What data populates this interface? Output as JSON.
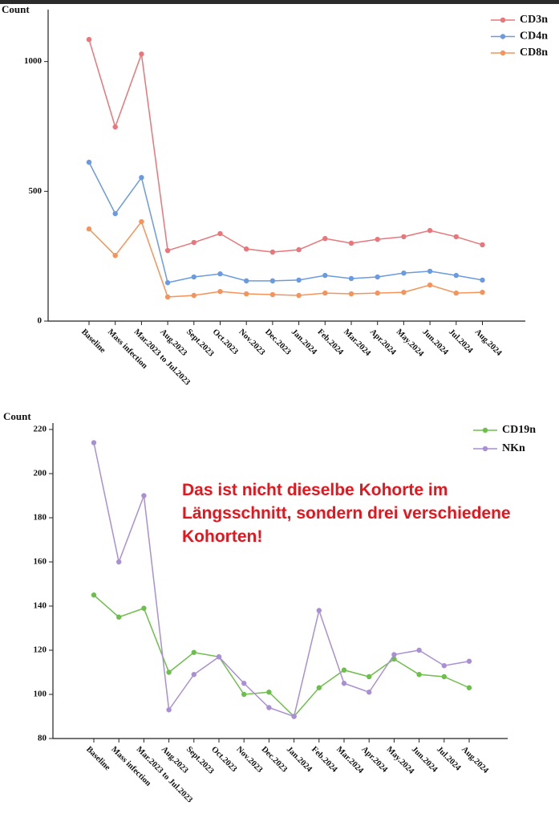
{
  "chart_data": [
    {
      "type": "line",
      "y_label": "Count",
      "categories": [
        "Baseline",
        "Mass infection",
        "Mar.2023 to Jul.2023",
        "Aug.2023",
        "Sept.2023",
        "Oct.2023",
        "Nov.2023",
        "Dec.2023",
        "Jan.2024",
        "Feb.2024",
        "Mar.2024",
        "Apr.2024",
        "May.2024",
        "Jun.2024",
        "Jul.2024",
        "Aug.2024"
      ],
      "series": [
        {
          "name": "CD3n",
          "color": "#e8767a",
          "values": [
            1085,
            748,
            1029,
            272,
            303,
            337,
            278,
            266,
            275,
            318,
            300,
            315,
            325,
            349,
            325,
            294
          ]
        },
        {
          "name": "CD4n",
          "color": "#6a9ae0",
          "values": [
            612,
            414,
            553,
            148,
            170,
            182,
            155,
            155,
            158,
            176,
            164,
            170,
            185,
            192,
            176,
            158
          ]
        },
        {
          "name": "CD8n",
          "color": "#f5945a",
          "values": [
            355,
            253,
            383,
            93,
            99,
            114,
            105,
            102,
            99,
            108,
            105,
            108,
            111,
            139,
            108,
            111
          ]
        }
      ],
      "ylim": [
        0,
        1200
      ],
      "yticks": [
        0,
        500,
        1000
      ],
      "legend": "upper right"
    },
    {
      "type": "line",
      "y_label": "Count",
      "categories": [
        "Baseline",
        "Mass infection",
        "Mar.2023 to Jul.2023",
        "Aug.2023",
        "Sept.2023",
        "Oct.2023",
        "Nov.2023",
        "Dec.2023",
        "Jan.2024",
        "Feb.2024",
        "Mar.2024",
        "Apr.2024",
        "May.2024",
        "Jun.2024",
        "Jul.2024",
        "Aug.2024"
      ],
      "series": [
        {
          "name": "CD19n",
          "color": "#6dbf4b",
          "values": [
            145,
            135,
            139,
            110,
            119,
            117,
            100,
            101,
            90,
            103,
            111,
            108,
            116,
            109,
            108,
            103
          ]
        },
        {
          "name": "NKn",
          "color": "#a98fd3",
          "values": [
            214,
            160,
            190,
            93,
            109,
            117,
            105,
            94,
            90,
            138,
            105,
            101,
            118,
            120,
            113,
            115
          ]
        }
      ],
      "ylim": [
        80,
        220
      ],
      "yticks": [
        80,
        100,
        120,
        140,
        160,
        180,
        200,
        220
      ],
      "legend": "upper right",
      "annotations": [
        "Das ist nicht dieselbe Kohorte im Längsschnitt, sondern drei verschiedene Kohorten!"
      ]
    }
  ]
}
